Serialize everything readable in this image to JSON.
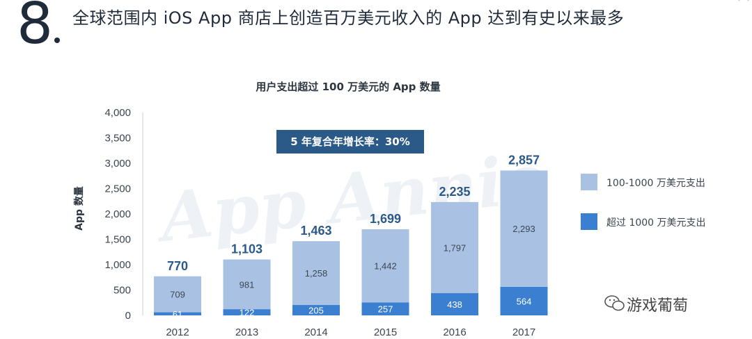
{
  "slide": {
    "number": "8",
    "headline": "全球范围内 iOS App 商店上创造百万美元收入的 App 达到有史以来最多"
  },
  "chart_data": {
    "type": "bar",
    "title": "用户支出超过 100 万美元的 App 数量",
    "ylabel": "App 数量",
    "xlabel": "",
    "ylim": [
      0,
      4000
    ],
    "yticks": [
      0,
      500,
      1000,
      1500,
      2000,
      2500,
      3000,
      3500,
      4000
    ],
    "ytick_labels": [
      "0",
      "500",
      "1,000",
      "1,500",
      "2,000",
      "2,500",
      "3,000",
      "3,500",
      "4,000"
    ],
    "categories": [
      "2012",
      "2013",
      "2014",
      "2015",
      "2016",
      "2017"
    ],
    "series": [
      {
        "name": "超过 1000 万美元支出",
        "values": [
          61,
          122,
          205,
          257,
          438,
          564
        ],
        "value_labels": [
          "61",
          "122",
          "205",
          "257",
          "438",
          "564"
        ],
        "color": "#3b7fd0"
      },
      {
        "name": "100-1000 万美元支出",
        "values": [
          709,
          981,
          1258,
          1442,
          1797,
          2293
        ],
        "value_labels": [
          "709",
          "981",
          "1,258",
          "1,442",
          "1,797",
          "2,293"
        ],
        "color": "#a9c2e4"
      }
    ],
    "totals": [
      770,
      1103,
      1463,
      1699,
      2235,
      2857
    ],
    "total_labels": [
      "770",
      "1,103",
      "1,463",
      "1,699",
      "2,235",
      "2,857"
    ],
    "stacked": true,
    "grid": false,
    "legend_position": "right",
    "annotation": "5 年复合年增长率：30%",
    "watermark_text": "App Annie"
  },
  "legend": {
    "items": [
      {
        "label": "100-1000 万美元支出",
        "color": "#a9c2e4"
      },
      {
        "label": "超过 1000 万美元支出",
        "color": "#3b7fd0"
      }
    ]
  },
  "source_watermark": "游戏葡萄",
  "colors": {
    "accent": "#2c5a88",
    "text": "#1f2b3a"
  }
}
